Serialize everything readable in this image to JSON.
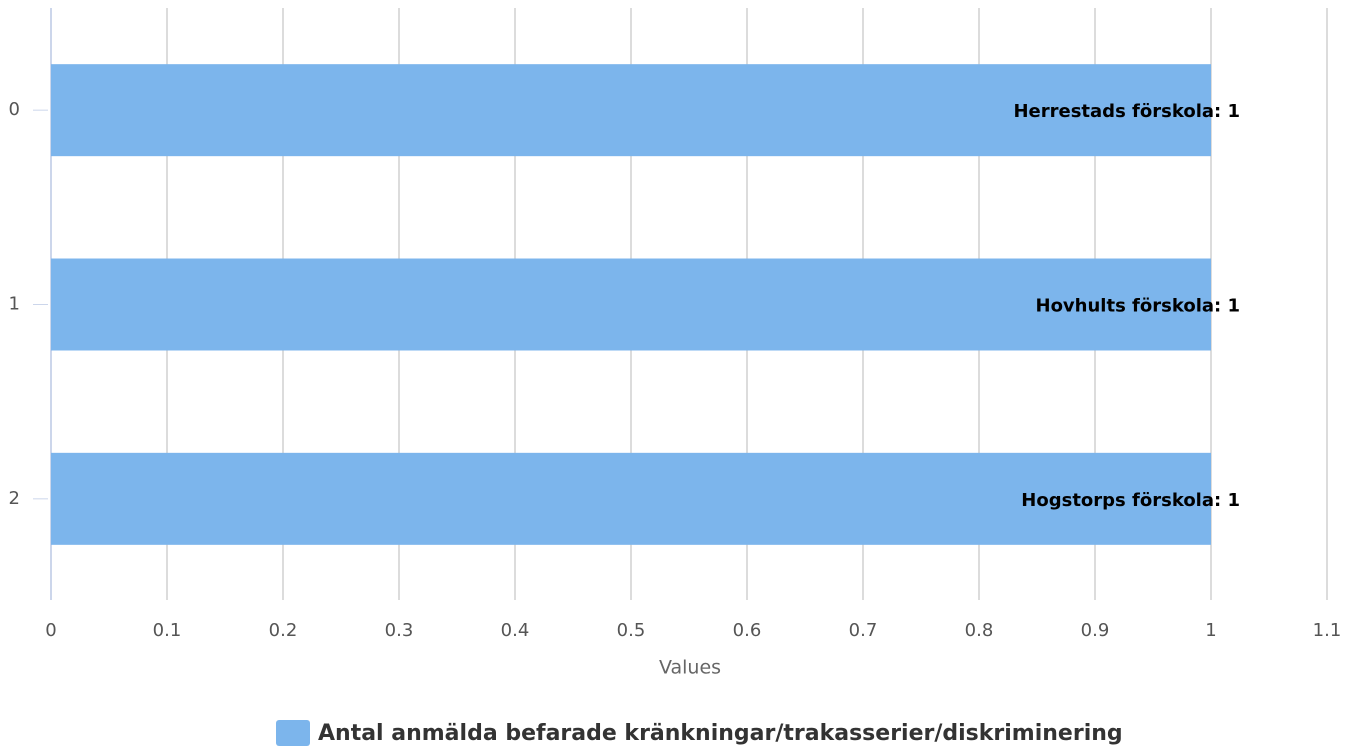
{
  "chart_data": {
    "type": "bar",
    "orientation": "horizontal",
    "categories": [
      "0",
      "1",
      "2"
    ],
    "series": [
      {
        "name": "Antal anmälda befarade kränkningar/trakasserier/diskriminering",
        "color": "#7cb5ec",
        "values": [
          1,
          1,
          1
        ],
        "value_labels": [
          "Herrestads förskola: 1",
          "Hovhults förskola: 1",
          "Hogstorps förskola: 1"
        ]
      }
    ],
    "x_label": "Values",
    "xlim": [
      0,
      1.1
    ],
    "xticks": [
      0,
      0.1,
      0.2,
      0.3,
      0.4,
      0.5,
      0.6,
      0.7,
      0.8,
      0.9,
      1,
      1.1
    ],
    "grid": true,
    "legend": "bottom"
  }
}
